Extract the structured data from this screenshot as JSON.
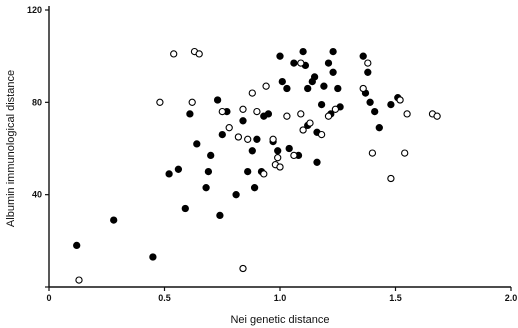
{
  "chart_data": {
    "type": "scatter",
    "xlabel": "Nei genetic distance",
    "ylabel": "Albumin immunological distance",
    "xlim": [
      0,
      2.0
    ],
    "ylim": [
      0,
      120
    ],
    "x_ticks": [
      0,
      0.5,
      1.0,
      1.5,
      2.0
    ],
    "x_tick_labels": [
      "0",
      "0.5",
      "1.0",
      "1.5",
      "2.0"
    ],
    "y_ticks": [
      0,
      40,
      80,
      120
    ],
    "y_tick_labels": [
      "",
      "40",
      "80",
      "120"
    ],
    "grid": false,
    "series": [
      {
        "marker": "filled-circle",
        "color": "#000000",
        "points": [
          [
            0.12,
            18
          ],
          [
            0.28,
            29
          ],
          [
            0.45,
            13
          ],
          [
            0.52,
            49
          ],
          [
            0.56,
            51
          ],
          [
            0.59,
            34
          ],
          [
            0.61,
            75
          ],
          [
            0.64,
            62
          ],
          [
            0.68,
            43
          ],
          [
            0.69,
            50
          ],
          [
            0.7,
            57
          ],
          [
            0.73,
            81
          ],
          [
            0.74,
            31
          ],
          [
            0.75,
            66
          ],
          [
            0.77,
            76
          ],
          [
            0.81,
            40
          ],
          [
            0.84,
            72
          ],
          [
            0.86,
            50
          ],
          [
            0.88,
            59
          ],
          [
            0.89,
            43
          ],
          [
            0.9,
            64
          ],
          [
            0.92,
            50
          ],
          [
            0.93,
            74
          ],
          [
            0.95,
            75
          ],
          [
            0.97,
            63
          ],
          [
            0.99,
            59
          ],
          [
            1.0,
            100
          ],
          [
            1.01,
            89
          ],
          [
            1.03,
            86
          ],
          [
            1.04,
            60
          ],
          [
            1.06,
            97
          ],
          [
            1.08,
            57
          ],
          [
            1.1,
            102
          ],
          [
            1.11,
            96
          ],
          [
            1.12,
            86
          ],
          [
            1.12,
            70
          ],
          [
            1.14,
            89
          ],
          [
            1.15,
            91
          ],
          [
            1.16,
            54
          ],
          [
            1.16,
            67
          ],
          [
            1.18,
            79
          ],
          [
            1.19,
            87
          ],
          [
            1.21,
            97
          ],
          [
            1.22,
            75
          ],
          [
            1.23,
            102
          ],
          [
            1.23,
            93
          ],
          [
            1.25,
            86
          ],
          [
            1.26,
            78
          ],
          [
            1.36,
            100
          ],
          [
            1.37,
            84
          ],
          [
            1.38,
            93
          ],
          [
            1.39,
            80
          ],
          [
            1.41,
            76
          ],
          [
            1.43,
            69
          ],
          [
            1.48,
            79
          ],
          [
            1.51,
            82
          ]
        ]
      },
      {
        "marker": "open-circle",
        "color": "#000000",
        "points": [
          [
            0.13,
            3
          ],
          [
            0.48,
            80
          ],
          [
            0.54,
            101
          ],
          [
            0.62,
            80
          ],
          [
            0.63,
            102
          ],
          [
            0.65,
            101
          ],
          [
            0.75,
            76
          ],
          [
            0.78,
            69
          ],
          [
            0.82,
            65
          ],
          [
            0.84,
            77
          ],
          [
            0.84,
            8
          ],
          [
            0.86,
            64
          ],
          [
            0.88,
            84
          ],
          [
            0.9,
            76
          ],
          [
            0.93,
            49
          ],
          [
            0.94,
            87
          ],
          [
            0.97,
            64
          ],
          [
            0.98,
            53
          ],
          [
            0.99,
            56
          ],
          [
            1.0,
            52
          ],
          [
            1.03,
            74
          ],
          [
            1.06,
            57
          ],
          [
            1.09,
            97
          ],
          [
            1.09,
            75
          ],
          [
            1.1,
            68
          ],
          [
            1.13,
            71
          ],
          [
            1.18,
            66
          ],
          [
            1.21,
            74
          ],
          [
            1.24,
            77
          ],
          [
            1.36,
            86
          ],
          [
            1.38,
            97
          ],
          [
            1.4,
            58
          ],
          [
            1.48,
            47
          ],
          [
            1.52,
            81
          ],
          [
            1.54,
            58
          ],
          [
            1.55,
            75
          ],
          [
            1.66,
            75
          ],
          [
            1.68,
            74
          ]
        ]
      }
    ]
  }
}
